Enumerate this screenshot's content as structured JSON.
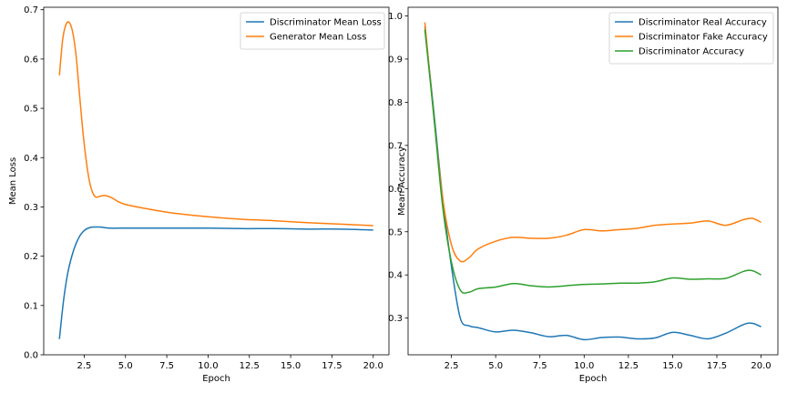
{
  "chart_data": [
    {
      "type": "line",
      "title": "",
      "xlabel": "Epoch",
      "ylabel": "Mean Loss",
      "xlim": [
        0.05,
        20.95
      ],
      "ylim": [
        0.0,
        0.705
      ],
      "xticks": [
        2.5,
        5.0,
        7.5,
        10.0,
        12.5,
        15.0,
        17.5,
        20.0
      ],
      "xtick_labels": [
        "2.5",
        "5.0",
        "7.5",
        "10.0",
        "12.5",
        "15.0",
        "17.5",
        "20.0"
      ],
      "yticks": [
        0.0,
        0.1,
        0.2,
        0.3,
        0.4,
        0.5,
        0.6,
        0.7
      ],
      "ytick_labels": [
        "0.0",
        "0.1",
        "0.2",
        "0.3",
        "0.4",
        "0.5",
        "0.6",
        "0.7"
      ],
      "grid": false,
      "legend_position": "top-right",
      "series": [
        {
          "name": "Discriminator Mean Loss",
          "color": "#1f77b4",
          "x": [
            1.0,
            1.25,
            1.5,
            1.75,
            2.0,
            2.25,
            2.5,
            2.75,
            3.0,
            3.5,
            4.0,
            5.0,
            6.0,
            8.0,
            10.0,
            12.0,
            14.0,
            16.0,
            18.0,
            20.0
          ],
          "y": [
            0.032,
            0.11,
            0.165,
            0.2,
            0.225,
            0.242,
            0.252,
            0.257,
            0.259,
            0.259,
            0.257,
            0.257,
            0.257,
            0.257,
            0.257,
            0.256,
            0.256,
            0.255,
            0.255,
            0.253
          ]
        },
        {
          "name": "Generator Mean Loss",
          "color": "#ff7f0e",
          "x": [
            1.0,
            1.2,
            1.4,
            1.6,
            1.8,
            2.0,
            2.2,
            2.4,
            2.6,
            2.8,
            3.0,
            3.2,
            3.5,
            3.8,
            4.2,
            4.6,
            5.0,
            6.0,
            7.0,
            8.0,
            10.0,
            12.0,
            14.0,
            16.0,
            18.0,
            20.0
          ],
          "y": [
            0.567,
            0.64,
            0.67,
            0.674,
            0.655,
            0.61,
            0.535,
            0.46,
            0.4,
            0.355,
            0.33,
            0.32,
            0.322,
            0.323,
            0.318,
            0.31,
            0.305,
            0.298,
            0.292,
            0.287,
            0.28,
            0.275,
            0.272,
            0.268,
            0.265,
            0.262
          ]
        }
      ]
    },
    {
      "type": "line",
      "title": "",
      "xlabel": "Epoch",
      "ylabel": "Mean Accuracy",
      "xlim": [
        0.05,
        20.95
      ],
      "ylim": [
        0.215,
        1.02
      ],
      "xticks": [
        2.5,
        5.0,
        7.5,
        10.0,
        12.5,
        15.0,
        17.5,
        20.0
      ],
      "xtick_labels": [
        "2.5",
        "5.0",
        "7.5",
        "10.0",
        "12.5",
        "15.0",
        "17.5",
        "20.0"
      ],
      "yticks": [
        0.3,
        0.4,
        0.5,
        0.6,
        0.7,
        0.8,
        0.9,
        1.0
      ],
      "ytick_labels": [
        "0.3",
        "0.4",
        "0.5",
        "0.6",
        "0.7",
        "0.8",
        "0.9",
        "1.0"
      ],
      "grid": false,
      "legend_position": "top-right",
      "series": [
        {
          "name": "Discriminator Real Accuracy",
          "color": "#1f77b4",
          "x": [
            1.0,
            1.5,
            2.0,
            2.5,
            3.0,
            3.5,
            4.0,
            5.0,
            6.0,
            7.0,
            8.0,
            9.0,
            10.0,
            11.0,
            12.0,
            13.0,
            14.0,
            15.0,
            16.0,
            17.0,
            18.0,
            19.0,
            19.5,
            20.0
          ],
          "y": [
            0.975,
            0.78,
            0.58,
            0.42,
            0.3,
            0.282,
            0.278,
            0.268,
            0.272,
            0.266,
            0.257,
            0.26,
            0.25,
            0.255,
            0.256,
            0.252,
            0.254,
            0.267,
            0.26,
            0.252,
            0.265,
            0.285,
            0.288,
            0.28
          ]
        },
        {
          "name": "Discriminator Fake Accuracy",
          "color": "#ff7f0e",
          "x": [
            1.0,
            1.5,
            2.0,
            2.5,
            3.0,
            3.5,
            4.0,
            5.0,
            6.0,
            7.0,
            8.0,
            9.0,
            10.0,
            11.0,
            12.0,
            13.0,
            14.0,
            15.0,
            16.0,
            17.0,
            18.0,
            19.0,
            19.5,
            20.0
          ],
          "y": [
            0.985,
            0.77,
            0.58,
            0.47,
            0.432,
            0.44,
            0.46,
            0.478,
            0.487,
            0.485,
            0.485,
            0.492,
            0.505,
            0.502,
            0.505,
            0.508,
            0.515,
            0.518,
            0.52,
            0.525,
            0.515,
            0.528,
            0.531,
            0.522
          ]
        },
        {
          "name": "Discriminator Accuracy",
          "color": "#2ca02c",
          "x": [
            1.0,
            1.5,
            2.0,
            2.5,
            3.0,
            3.5,
            4.0,
            5.0,
            6.0,
            7.0,
            8.0,
            9.0,
            10.0,
            11.0,
            12.0,
            13.0,
            14.0,
            15.0,
            16.0,
            17.0,
            18.0,
            19.0,
            19.5,
            20.0
          ],
          "y": [
            0.968,
            0.77,
            0.56,
            0.43,
            0.365,
            0.36,
            0.368,
            0.372,
            0.38,
            0.375,
            0.372,
            0.375,
            0.378,
            0.379,
            0.381,
            0.381,
            0.384,
            0.393,
            0.39,
            0.391,
            0.392,
            0.408,
            0.41,
            0.4
          ]
        }
      ]
    }
  ]
}
